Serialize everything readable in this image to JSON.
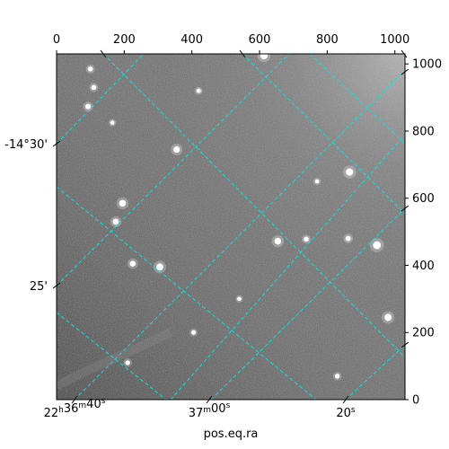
{
  "chart_data": {
    "type": "image",
    "xlabel": "pos.eq.ra",
    "pixel_axes": {
      "x": {
        "range": [
          0,
          1030
        ],
        "ticks": [
          0,
          200,
          400,
          600,
          800,
          1000
        ]
      },
      "y": {
        "range": [
          0,
          1030
        ],
        "ticks": [
          0,
          200,
          400,
          600,
          800,
          1000
        ]
      }
    },
    "world_ticks": {
      "ra": [
        "22h36m40s",
        "37m00s",
        "20s"
      ],
      "dec": [
        "-14°30'",
        "25'"
      ]
    },
    "grid": true,
    "colors": {
      "grid": "#00e5e5",
      "image_base": "#6e6e6e",
      "frame": "#000000"
    },
    "stars": [
      {
        "x": 947,
        "y": 460,
        "brightness": 1.0
      },
      {
        "x": 866,
        "y": 678,
        "brightness": 0.9
      },
      {
        "x": 305,
        "y": 395,
        "brightness": 0.85
      },
      {
        "x": 654,
        "y": 472,
        "brightness": 0.8
      },
      {
        "x": 980,
        "y": 245,
        "brightness": 0.85
      },
      {
        "x": 355,
        "y": 745,
        "brightness": 0.75
      },
      {
        "x": 195,
        "y": 585,
        "brightness": 0.8
      },
      {
        "x": 175,
        "y": 530,
        "brightness": 0.7
      },
      {
        "x": 225,
        "y": 405,
        "brightness": 0.65
      },
      {
        "x": 93,
        "y": 873,
        "brightness": 0.6
      },
      {
        "x": 100,
        "y": 985,
        "brightness": 0.5
      },
      {
        "x": 110,
        "y": 930,
        "brightness": 0.5
      },
      {
        "x": 738,
        "y": 478,
        "brightness": 0.5
      },
      {
        "x": 862,
        "y": 480,
        "brightness": 0.55
      },
      {
        "x": 613,
        "y": 1025,
        "brightness": 0.9
      },
      {
        "x": 830,
        "y": 70,
        "brightness": 0.45
      },
      {
        "x": 210,
        "y": 110,
        "brightness": 0.45
      },
      {
        "x": 405,
        "y": 200,
        "brightness": 0.4
      },
      {
        "x": 165,
        "y": 825,
        "brightness": 0.35
      },
      {
        "x": 420,
        "y": 920,
        "brightness": 0.4
      },
      {
        "x": 770,
        "y": 650,
        "brightness": 0.35
      },
      {
        "x": 540,
        "y": 300,
        "brightness": 0.35
      }
    ]
  }
}
